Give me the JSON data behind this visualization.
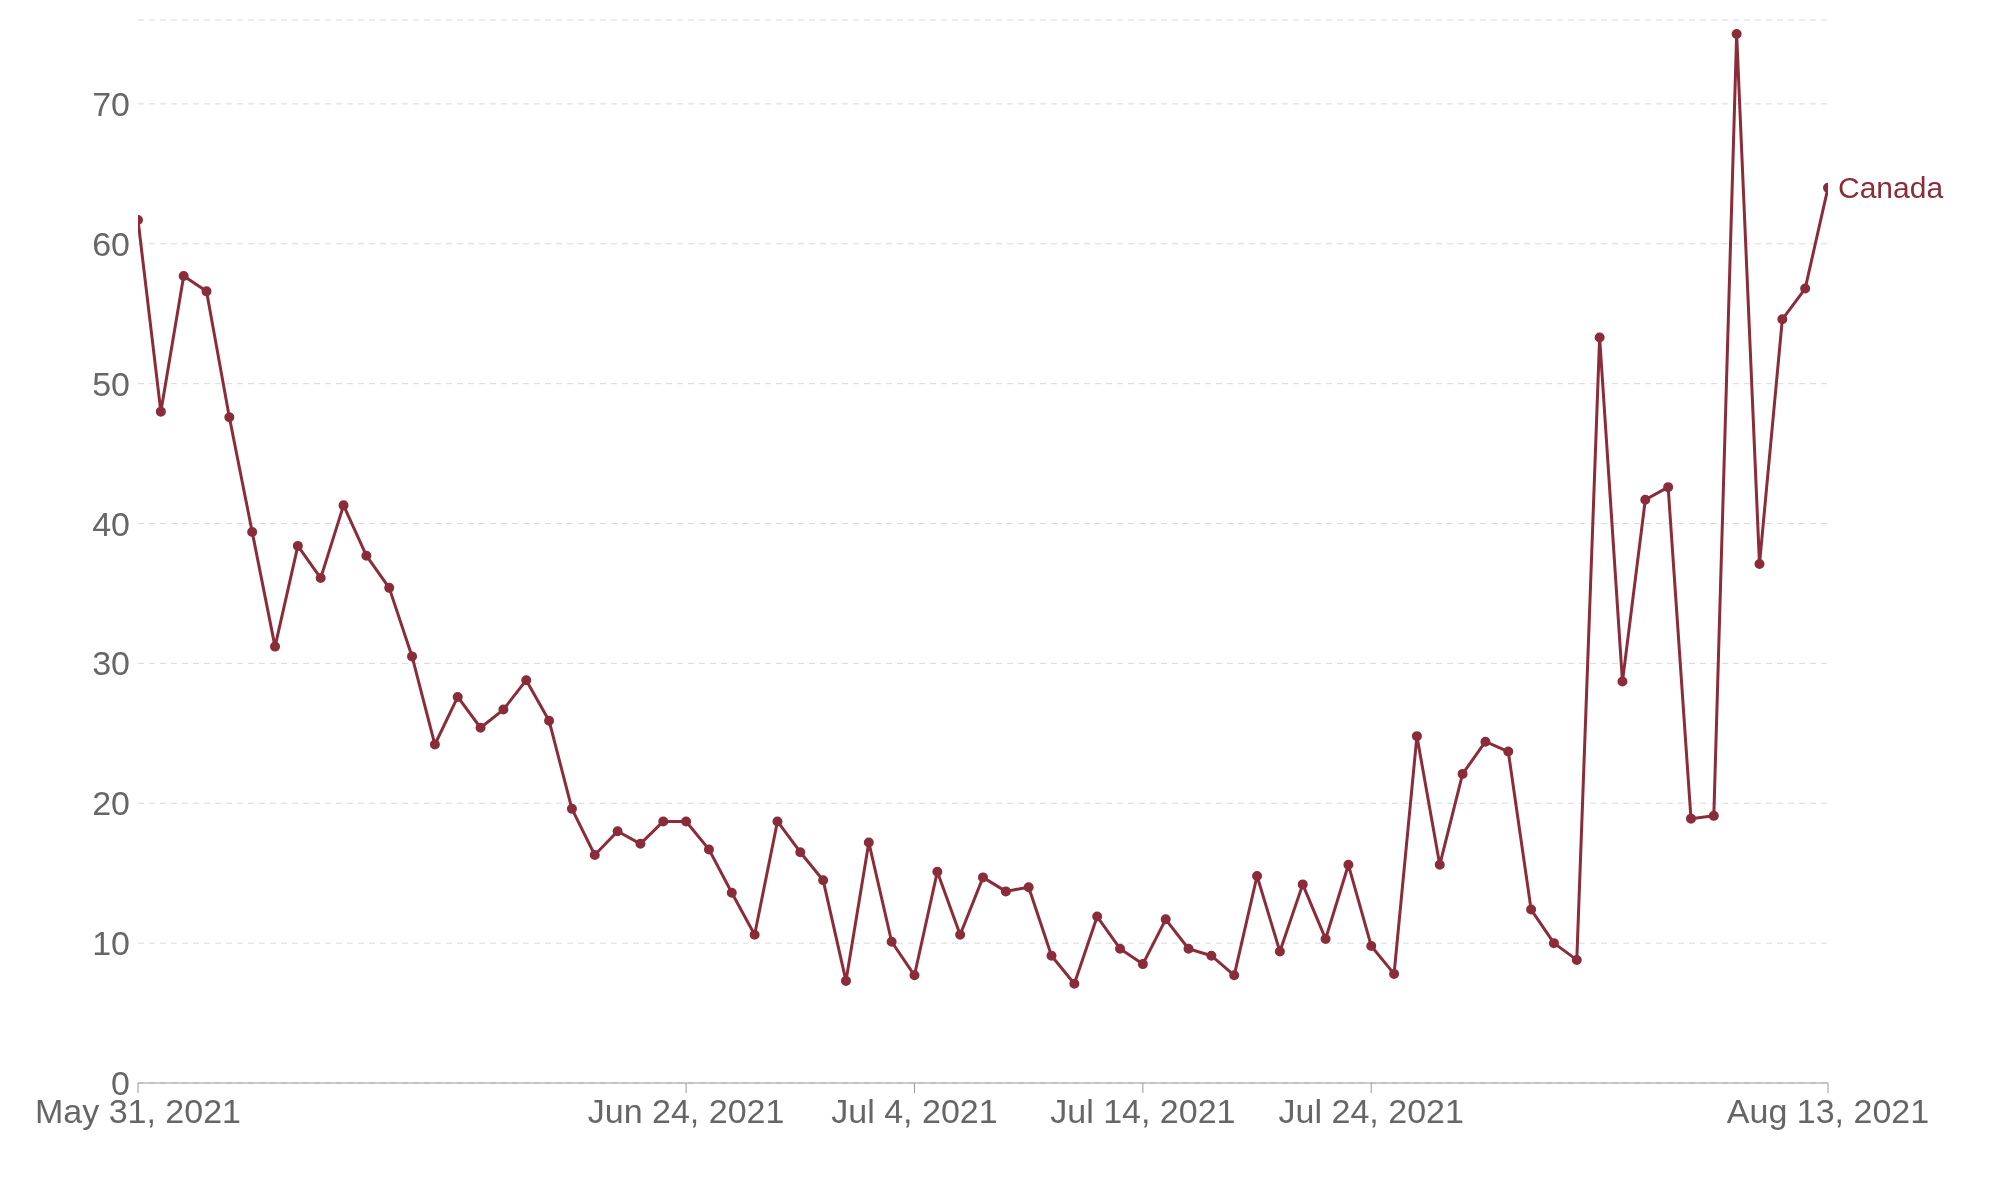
{
  "chart_data": {
    "type": "line",
    "x": [
      "2021-05-31",
      "2021-06-01",
      "2021-06-02",
      "2021-06-03",
      "2021-06-04",
      "2021-06-05",
      "2021-06-06",
      "2021-06-07",
      "2021-06-08",
      "2021-06-09",
      "2021-06-10",
      "2021-06-11",
      "2021-06-12",
      "2021-06-13",
      "2021-06-14",
      "2021-06-15",
      "2021-06-16",
      "2021-06-17",
      "2021-06-18",
      "2021-06-19",
      "2021-06-20",
      "2021-06-21",
      "2021-06-22",
      "2021-06-23",
      "2021-06-24",
      "2021-06-25",
      "2021-06-26",
      "2021-06-27",
      "2021-06-28",
      "2021-06-29",
      "2021-06-30",
      "2021-07-01",
      "2021-07-02",
      "2021-07-03",
      "2021-07-04",
      "2021-07-05",
      "2021-07-06",
      "2021-07-07",
      "2021-07-08",
      "2021-07-09",
      "2021-07-10",
      "2021-07-11",
      "2021-07-12",
      "2021-07-13",
      "2021-07-14",
      "2021-07-15",
      "2021-07-16",
      "2021-07-17",
      "2021-07-18",
      "2021-07-19",
      "2021-07-20",
      "2021-07-21",
      "2021-07-22",
      "2021-07-23",
      "2021-07-24",
      "2021-07-25",
      "2021-07-26",
      "2021-07-27",
      "2021-07-28",
      "2021-07-29",
      "2021-07-30",
      "2021-07-31",
      "2021-08-01",
      "2021-08-02",
      "2021-08-03",
      "2021-08-04",
      "2021-08-05",
      "2021-08-06",
      "2021-08-07",
      "2021-08-08",
      "2021-08-09",
      "2021-08-10",
      "2021-08-11",
      "2021-08-12",
      "2021-08-13"
    ],
    "series": [
      {
        "name": "Canada",
        "color": "#8b2c3a",
        "values": [
          61.7,
          48.0,
          57.7,
          56.6,
          47.6,
          39.4,
          31.2,
          38.4,
          36.1,
          41.3,
          37.7,
          35.4,
          30.5,
          24.2,
          27.6,
          25.4,
          26.7,
          28.8,
          25.9,
          19.6,
          16.3,
          18.0,
          17.1,
          18.7,
          18.7,
          16.7,
          13.6,
          10.6,
          18.7,
          16.5,
          14.5,
          7.3,
          17.2,
          10.1,
          7.7,
          15.1,
          10.6,
          14.7,
          13.7,
          14.0,
          9.1,
          7.1,
          11.9,
          9.6,
          8.5,
          11.7,
          9.6,
          9.1,
          7.7,
          14.8,
          9.4,
          14.2,
          10.3,
          15.6,
          9.8,
          7.8,
          24.8,
          15.6,
          22.1,
          24.4,
          23.7,
          12.4,
          10.0,
          8.8,
          53.3,
          28.7,
          41.7,
          42.6,
          18.9,
          19.1,
          75.0,
          37.1,
          54.6,
          56.8,
          64.0
        ]
      }
    ],
    "xlim": [
      "2021-05-31",
      "2021-08-13"
    ],
    "xticks": [
      {
        "value": "2021-05-31",
        "label": "May 31, 2021"
      },
      {
        "value": "2021-06-24",
        "label": "Jun 24, 2021"
      },
      {
        "value": "2021-07-04",
        "label": "Jul 4, 2021"
      },
      {
        "value": "2021-07-14",
        "label": "Jul 14, 2021"
      },
      {
        "value": "2021-07-24",
        "label": "Jul 24, 2021"
      },
      {
        "value": "2021-08-13",
        "label": "Aug 13, 2021"
      }
    ],
    "ylim": [
      0,
      76
    ],
    "yticks": [
      0,
      10,
      20,
      30,
      40,
      50,
      60,
      70
    ],
    "grid": "y",
    "legend": false,
    "marker": "circle",
    "line_style": "solid"
  }
}
